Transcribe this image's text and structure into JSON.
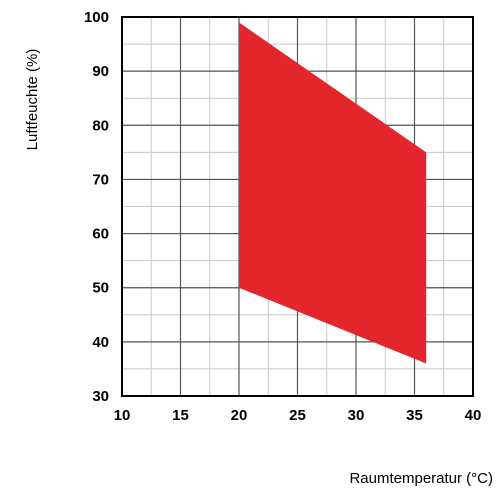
{
  "chart_data": {
    "type": "area",
    "title": "",
    "xlabel": "Raumtemperatur (°C)",
    "ylabel": "Luftfeuchte (%)",
    "xlim": [
      10,
      40
    ],
    "ylim": [
      30,
      100
    ],
    "x_ticks": [
      "10",
      "15",
      "20",
      "25",
      "30",
      "35",
      "40"
    ],
    "y_ticks": [
      "30",
      "40",
      "50",
      "60",
      "70",
      "80",
      "90",
      "100"
    ],
    "grid": true,
    "minor_grid_step": {
      "x": 2.5,
      "y": 5
    },
    "fill_color": "#e3262b",
    "region": {
      "x": [
        20,
        20,
        36,
        36
      ],
      "y": [
        50,
        99,
        75,
        36
      ]
    }
  }
}
